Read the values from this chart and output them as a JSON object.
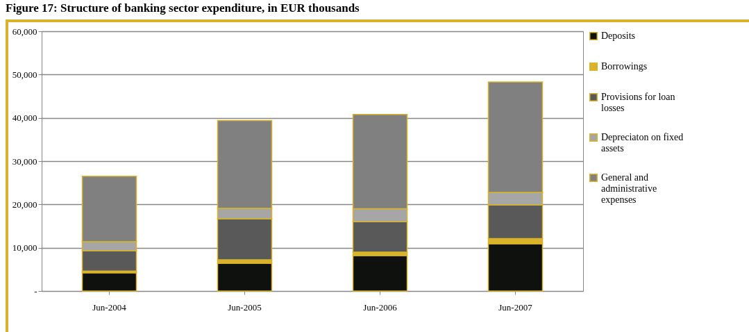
{
  "chart_data": {
    "type": "bar",
    "title": "Figure 17: Structure of banking sector expenditure, in EUR thousands",
    "stacked": true,
    "categories": [
      "Jun-2004",
      "Jun-2005",
      "Jun-2006",
      "Jun-2007"
    ],
    "series": [
      {
        "name": "Deposits",
        "color": "#0f110f",
        "values": [
          4200,
          6400,
          8200,
          10900
        ]
      },
      {
        "name": "Borrowings",
        "color": "#d9b42a",
        "values": [
          400,
          800,
          800,
          1200
        ]
      },
      {
        "name": "Provisions for loan losses",
        "color": "#595959",
        "values": [
          4700,
          9500,
          7000,
          7800
        ]
      },
      {
        "name": "Depreciaton on fixed assets",
        "color": "#a6a6a6",
        "values": [
          2100,
          2400,
          3000,
          2900
        ]
      },
      {
        "name": "General and administrative expenses",
        "color": "#808080",
        "values": [
          15100,
          20300,
          21800,
          25500
        ]
      }
    ],
    "ylim": [
      0,
      60000
    ],
    "yticks": [
      {
        "value": 0,
        "label": "-"
      },
      {
        "value": 10000,
        "label": "10,000"
      },
      {
        "value": 20000,
        "label": "20,000"
      },
      {
        "value": 30000,
        "label": "30,000"
      },
      {
        "value": 40000,
        "label": "40,000"
      },
      {
        "value": 50000,
        "label": "50,000"
      },
      {
        "value": 60000,
        "label": "60,000"
      }
    ],
    "grid": "y",
    "legend": "right"
  }
}
